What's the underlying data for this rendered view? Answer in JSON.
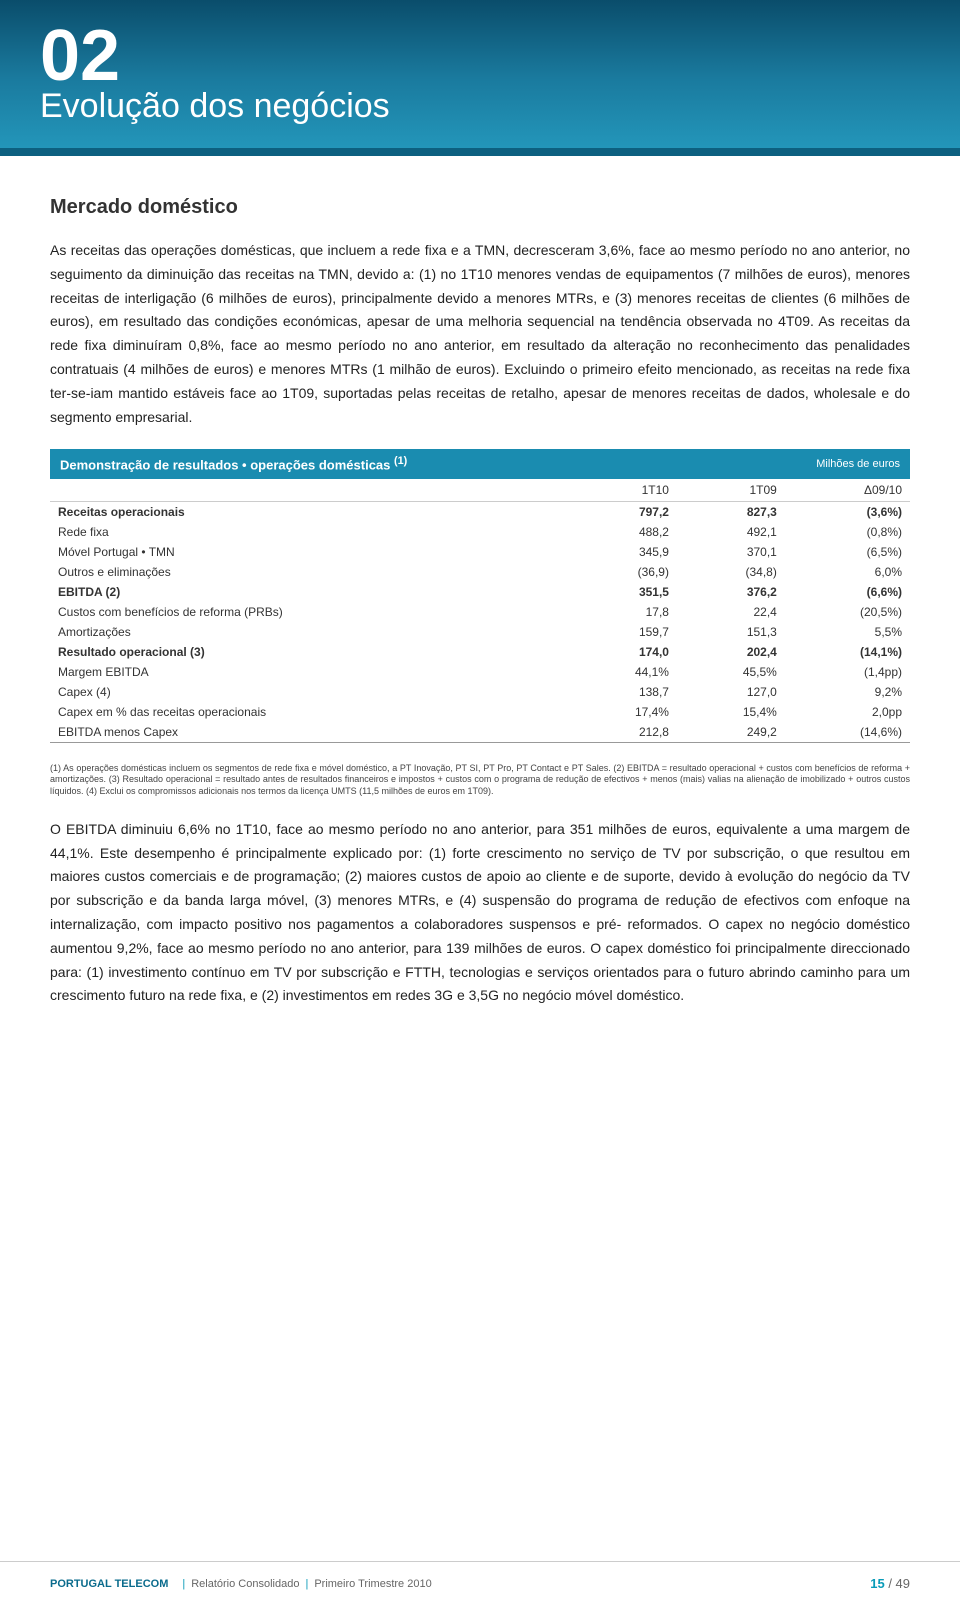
{
  "header": {
    "chapter_num": "02",
    "chapter_title": "Evolução dos negócios"
  },
  "section_title": "Mercado doméstico",
  "paragraph1": "As receitas das operações domésticas, que incluem a rede fixa e a TMN, decresceram 3,6%, face ao mesmo período no ano anterior, no seguimento da diminuição das receitas na TMN, devido a: (1) no 1T10 menores vendas de equipamentos (7 milhões de euros), menores receitas de interligação (6 milhões de euros), principalmente devido a menores MTRs, e (3) menores receitas de clientes (6 milhões de euros), em resultado das condições económicas, apesar de uma melhoria sequencial na tendência observada no 4T09. As receitas da rede fixa diminuíram 0,8%, face ao mesmo período no ano anterior, em resultado da alteração no reconhecimento das penalidades contratuais (4 milhões de euros) e menores MTRs (1 milhão de euros). Excluindo o primeiro efeito mencionado, as receitas na rede fixa ter-se-iam mantido estáveis face ao 1T09, suportadas pelas receitas de retalho, apesar de menores receitas de dados, wholesale e do segmento empresarial.",
  "table": {
    "title_left": "Demonstração de resultados • operações domésticas",
    "title_sup": "(1)",
    "title_right": "Milhões de euros",
    "columns": [
      "",
      "1T10",
      "1T09",
      "Δ09/10"
    ],
    "rows": [
      {
        "bold": true,
        "cells": [
          "Receitas operacionais",
          "797,2",
          "827,3",
          "(3,6%)"
        ]
      },
      {
        "bold": false,
        "cells": [
          "Rede fixa",
          "488,2",
          "492,1",
          "(0,8%)"
        ]
      },
      {
        "bold": false,
        "cells": [
          "Móvel Portugal • TMN",
          "345,9",
          "370,1",
          "(6,5%)"
        ]
      },
      {
        "bold": false,
        "cells": [
          "Outros e eliminações",
          "(36,9)",
          "(34,8)",
          "6,0%"
        ]
      },
      {
        "bold": true,
        "cells": [
          "EBITDA (2)",
          "351,5",
          "376,2",
          "(6,6%)"
        ]
      },
      {
        "bold": false,
        "cells": [
          "Custos com benefícios de reforma (PRBs)",
          "17,8",
          "22,4",
          "(20,5%)"
        ]
      },
      {
        "bold": false,
        "cells": [
          "Amortizações",
          "159,7",
          "151,3",
          "5,5%"
        ]
      },
      {
        "bold": true,
        "cells": [
          "Resultado operacional (3)",
          "174,0",
          "202,4",
          "(14,1%)"
        ]
      },
      {
        "bold": false,
        "cells": [
          "Margem EBITDA",
          "44,1%",
          "45,5%",
          "(1,4pp)"
        ]
      },
      {
        "bold": false,
        "cells": [
          "Capex (4)",
          "138,7",
          "127,0",
          "9,2%"
        ]
      },
      {
        "bold": false,
        "cells": [
          "Capex em % das receitas operacionais",
          "17,4%",
          "15,4%",
          "2,0pp"
        ]
      },
      {
        "bold": false,
        "cells": [
          "EBITDA menos Capex",
          "212,8",
          "249,2",
          "(14,6%)"
        ]
      }
    ]
  },
  "footnote": "(1) As operações domésticas incluem os segmentos de rede fixa e móvel doméstico, a PT Inovação, PT SI, PT Pro, PT Contact e PT Sales. (2) EBITDA = resultado operacional + custos com benefícios de reforma + amortizações. (3) Resultado operacional = resultado antes de resultados financeiros e impostos + custos com o programa de redução de efectivos + menos (mais) valias na alienação de imobilizado + outros custos líquidos. (4) Exclui os compromissos adicionais nos termos da licença UMTS (11,5 milhões de euros em 1T09).",
  "paragraph2": "O EBITDA diminuiu 6,6% no 1T10, face ao mesmo período no ano anterior, para 351 milhões de euros, equivalente a uma margem de 44,1%. Este desempenho é principalmente explicado por: (1) forte crescimento no serviço de TV por subscrição, o que resultou em maiores custos comerciais e de programação; (2) maiores custos de apoio ao cliente e de suporte, devido à evolução do negócio da TV por subscrição e da banda larga móvel, (3) menores MTRs, e (4) suspensão do programa de redução de efectivos com enfoque na internalização, com impacto positivo nos pagamentos a colaboradores suspensos e pré- reformados. O capex no negócio doméstico aumentou 9,2%, face ao mesmo período no ano anterior, para 139 milhões de euros. O capex doméstico foi principalmente direccionado para: (1) investimento contínuo em TV por subscrição e FTTH, tecnologias e serviços orientados para o futuro abrindo caminho para um crescimento futuro na rede fixa, e (2) investimentos em redes 3G e 3,5G no negócio móvel doméstico.",
  "footer": {
    "brand": "PORTUGAL TELECOM",
    "part1": "Relatório Consolidado",
    "part2": "Primeiro Trimestre 2010",
    "page_cur": "15",
    "page_total": "/ 49"
  }
}
